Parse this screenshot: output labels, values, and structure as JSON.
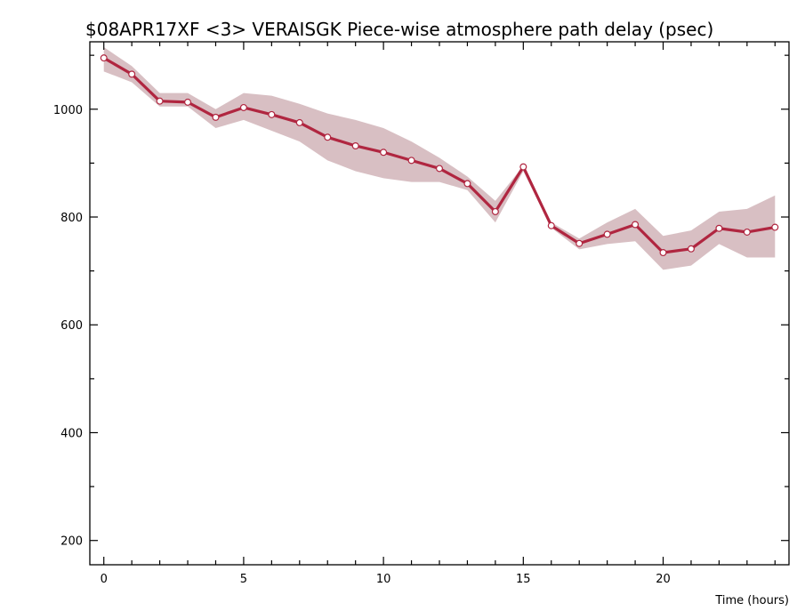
{
  "chart_data": {
    "type": "line",
    "title": "$08APR17XF <3>  VERAISGK  Piece-wise atmosphere path delay (psec)",
    "xlabel": "Time (hours)",
    "ylabel": "",
    "xlim": [
      -0.5,
      24.5
    ],
    "ylim": [
      155,
      1125
    ],
    "x_ticks_major": [
      0,
      5,
      10,
      15,
      20
    ],
    "x_ticks_minor": [
      1,
      2,
      3,
      4,
      6,
      7,
      8,
      9,
      11,
      12,
      13,
      14,
      16,
      17,
      18,
      19,
      21,
      22,
      23,
      24
    ],
    "y_ticks_major": [
      200,
      400,
      600,
      800,
      1000
    ],
    "y_ticks_minor": [
      300,
      500,
      700,
      900,
      1100
    ],
    "grid": false,
    "colors": {
      "line": "#b02640",
      "band": "#d8bfc3",
      "marker_fill": "#ffffff"
    },
    "series": [
      {
        "x": [
          0,
          1,
          2,
          3,
          4,
          5,
          6,
          7,
          8,
          9,
          10,
          11,
          12,
          13,
          14,
          15,
          16,
          17,
          18,
          19,
          20,
          21,
          22,
          23,
          24
        ],
        "values": [
          1095,
          1065,
          1015,
          1013,
          985,
          1003,
          990,
          975,
          948,
          932,
          920,
          905,
          890,
          862,
          810,
          893,
          784,
          751,
          768,
          786,
          734,
          741,
          779,
          772,
          781
        ],
        "upper": [
          1115,
          1080,
          1030,
          1030,
          1000,
          1030,
          1025,
          1010,
          992,
          980,
          965,
          940,
          910,
          875,
          830,
          895,
          790,
          760,
          790,
          815,
          765,
          775,
          810,
          815,
          840
        ],
        "lower": [
          1070,
          1050,
          1005,
          1005,
          965,
          980,
          960,
          940,
          905,
          885,
          872,
          865,
          865,
          850,
          790,
          885,
          780,
          740,
          750,
          755,
          702,
          710,
          750,
          725,
          725
        ]
      }
    ]
  }
}
